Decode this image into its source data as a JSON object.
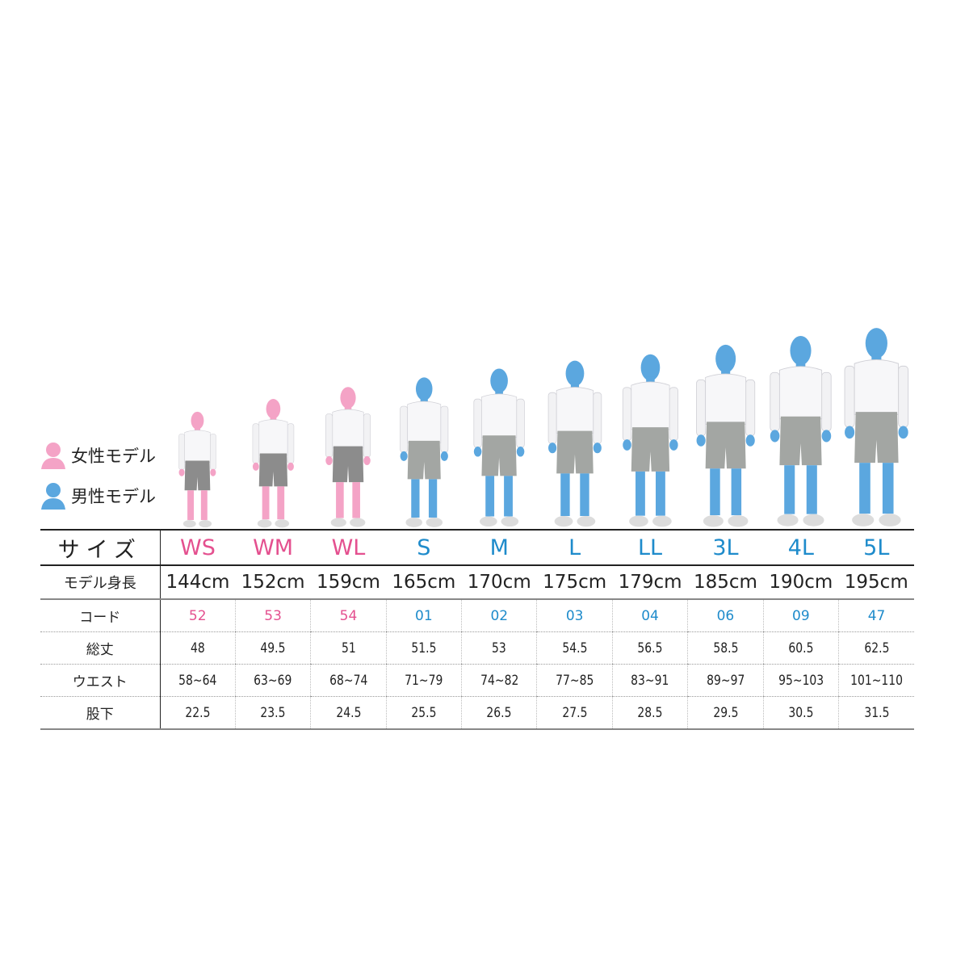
{
  "legend": {
    "female": {
      "label": "女性モデル",
      "color": "#f4a3c6"
    },
    "male": {
      "label": "男性モデル",
      "color": "#5ba7df"
    }
  },
  "colors": {
    "female_text": "#e4508f",
    "male_text": "#1e8bcb"
  },
  "table": {
    "row_labels": {
      "size": "サイズ",
      "height": "モデル身長",
      "code": "コード",
      "length": "総丈",
      "waist": "ウエスト",
      "inseam": "股下"
    },
    "columns": [
      {
        "size": "WS",
        "gender": "female",
        "height": "144cm",
        "code": "52",
        "length": "48",
        "waist": "58~64",
        "inseam": "22.5"
      },
      {
        "size": "WM",
        "gender": "female",
        "height": "152cm",
        "code": "53",
        "length": "49.5",
        "waist": "63~69",
        "inseam": "23.5"
      },
      {
        "size": "WL",
        "gender": "female",
        "height": "159cm",
        "code": "54",
        "length": "51",
        "waist": "68~74",
        "inseam": "24.5"
      },
      {
        "size": "S",
        "gender": "male",
        "height": "165cm",
        "code": "01",
        "length": "51.5",
        "waist": "71~79",
        "inseam": "25.5"
      },
      {
        "size": "M",
        "gender": "male",
        "height": "170cm",
        "code": "02",
        "length": "53",
        "waist": "74~82",
        "inseam": "26.5"
      },
      {
        "size": "L",
        "gender": "male",
        "height": "175cm",
        "code": "03",
        "length": "54.5",
        "waist": "77~85",
        "inseam": "27.5"
      },
      {
        "size": "LL",
        "gender": "male",
        "height": "179cm",
        "code": "04",
        "length": "56.5",
        "waist": "83~91",
        "inseam": "28.5"
      },
      {
        "size": "3L",
        "gender": "male",
        "height": "185cm",
        "code": "06",
        "length": "58.5",
        "waist": "89~97",
        "inseam": "29.5"
      },
      {
        "size": "4L",
        "gender": "male",
        "height": "190cm",
        "code": "09",
        "length": "60.5",
        "waist": "95~103",
        "inseam": "30.5"
      },
      {
        "size": "5L",
        "gender": "male",
        "height": "195cm",
        "code": "47",
        "length": "62.5",
        "waist": "101~110",
        "inseam": "31.5"
      }
    ]
  }
}
